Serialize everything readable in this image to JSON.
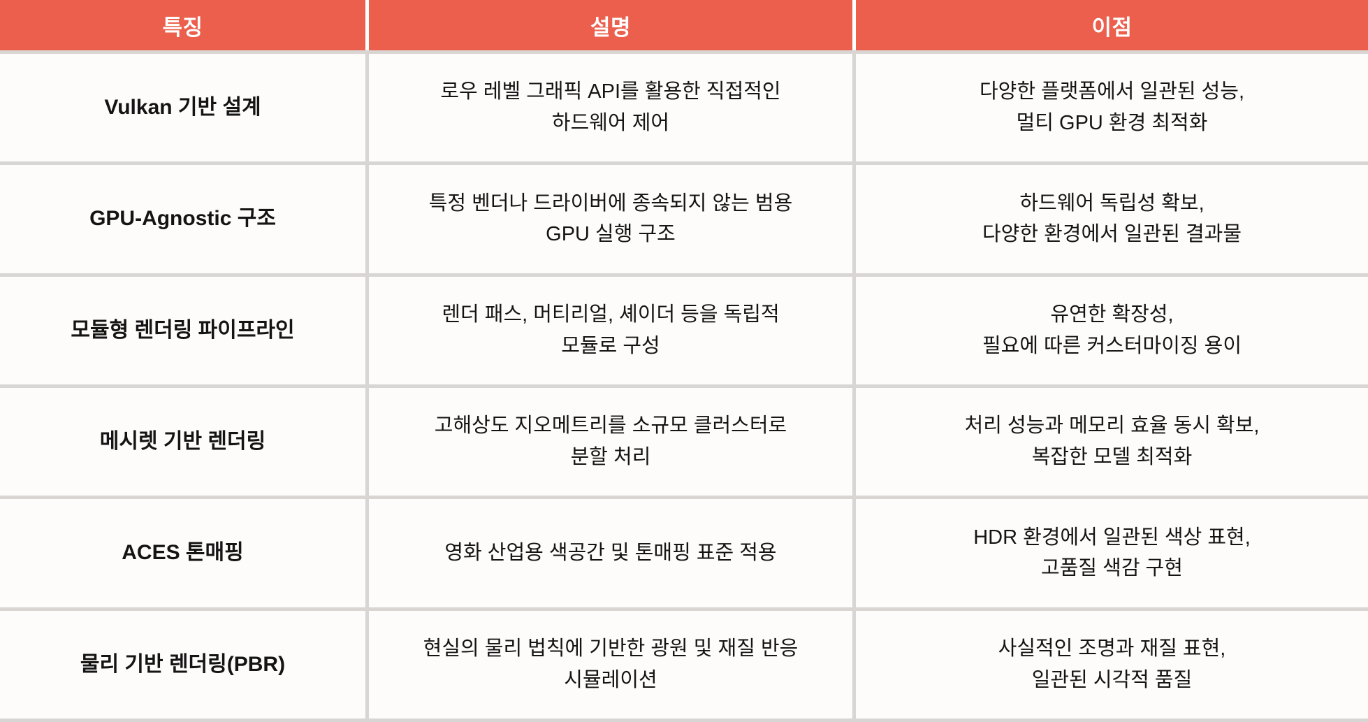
{
  "colors": {
    "header_bg": "#EB5F4C",
    "header_text": "#FFFFFF",
    "cell_bg": "#FDFCFB",
    "border": "#D8D5D3",
    "text": "#141414"
  },
  "table": {
    "columns": [
      {
        "key": "feature",
        "label": "특징"
      },
      {
        "key": "description",
        "label": "설명"
      },
      {
        "key": "benefit",
        "label": "이점"
      }
    ],
    "rows": [
      {
        "feature": "Vulkan 기반 설계",
        "description": "로우 레벨 그래픽 API를 활용한 직접적인\n하드웨어 제어",
        "benefit": "다양한 플랫폼에서 일관된 성능,\n멀티 GPU 환경 최적화"
      },
      {
        "feature": "GPU-Agnostic 구조",
        "description": "특정 벤더나 드라이버에 종속되지 않는 범용\nGPU 실행 구조",
        "benefit": "하드웨어 독립성 확보,\n다양한 환경에서 일관된 결과물"
      },
      {
        "feature": "모듈형 렌더링 파이프라인",
        "description": "렌더 패스, 머티리얼, 셰이더 등을 독립적\n모듈로 구성",
        "benefit": "유연한 확장성,\n필요에 따른 커스터마이징 용이"
      },
      {
        "feature": "메시렛 기반 렌더링",
        "description": "고해상도 지오메트리를 소규모 클러스터로\n분할 처리",
        "benefit": "처리 성능과 메모리 효율 동시 확보,\n복잡한 모델 최적화"
      },
      {
        "feature": "ACES 톤매핑",
        "description": "영화 산업용 색공간 및 톤매핑 표준 적용",
        "benefit": "HDR 환경에서 일관된 색상 표현,\n고품질 색감 구현"
      },
      {
        "feature": "물리 기반 렌더링(PBR)",
        "description": "현실의 물리 법칙에 기반한 광원 및 재질 반응\n시뮬레이션",
        "benefit": "사실적인 조명과 재질 표현,\n일관된 시각적 품질"
      }
    ]
  }
}
